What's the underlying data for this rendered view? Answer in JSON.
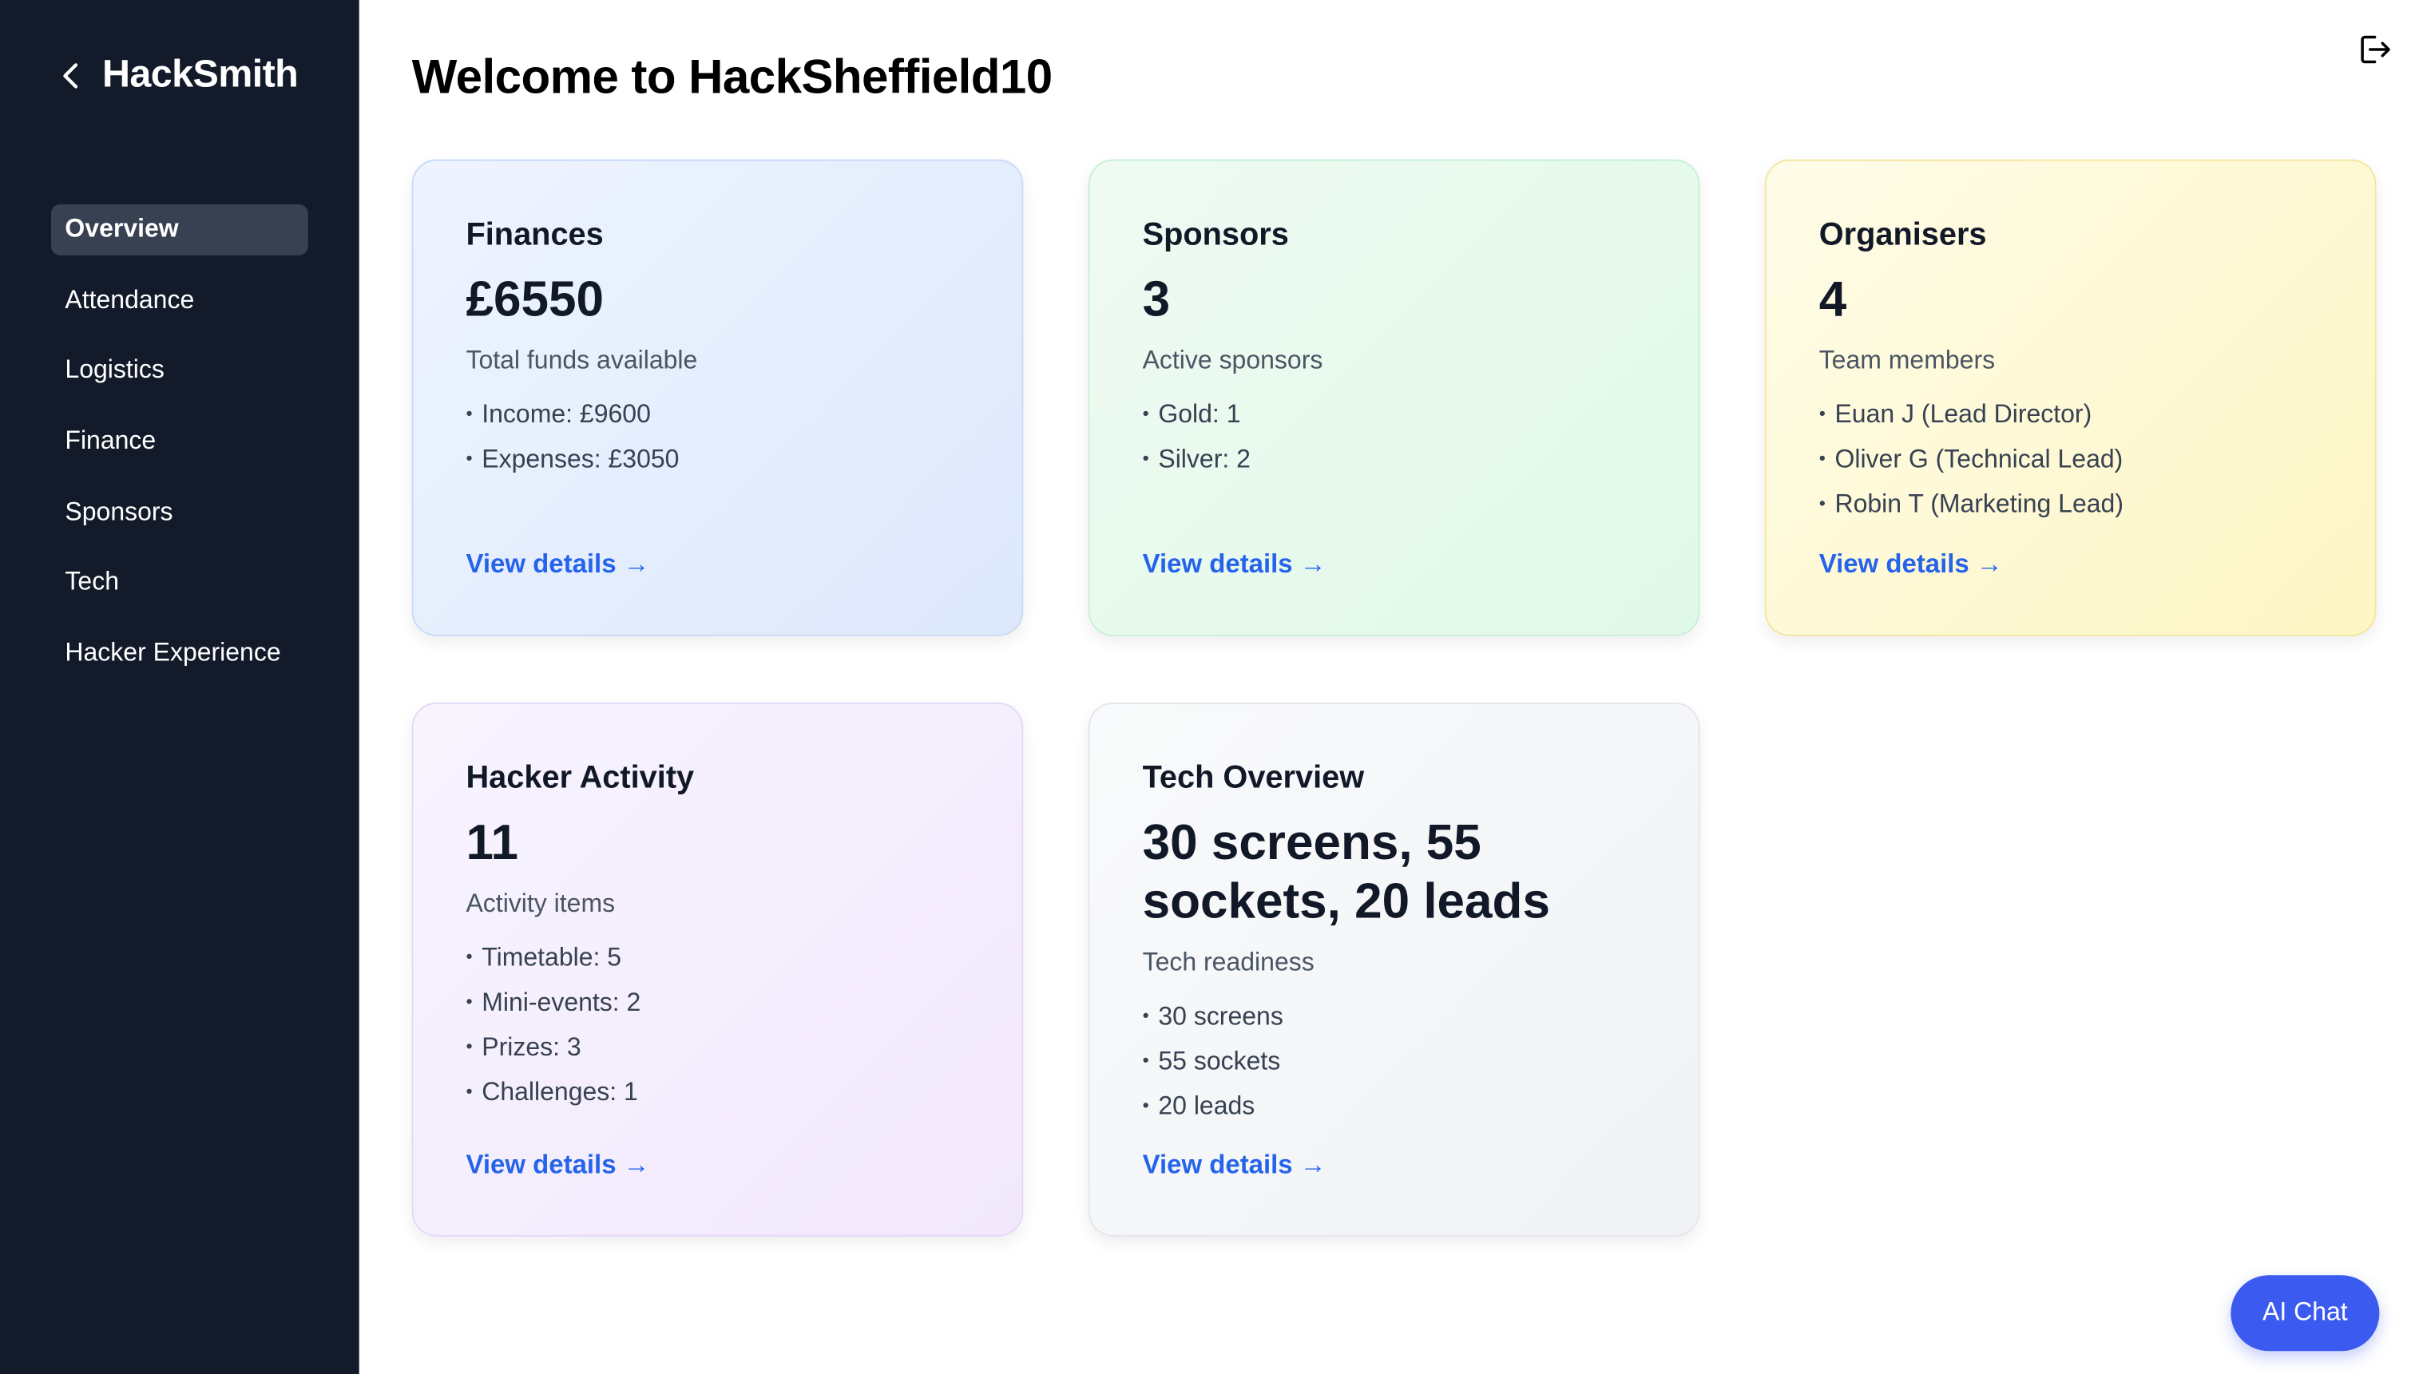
{
  "sidebar": {
    "brand": "HackSmith",
    "items": [
      {
        "label": "Overview",
        "active": true
      },
      {
        "label": "Attendance"
      },
      {
        "label": "Logistics"
      },
      {
        "label": "Finance"
      },
      {
        "label": "Sponsors"
      },
      {
        "label": "Tech"
      },
      {
        "label": "Hacker Experience"
      }
    ]
  },
  "header": {
    "title": "Welcome to HackSheffield10",
    "logout_icon": "logout-icon"
  },
  "cards": [
    {
      "title": "Finances",
      "value": "£6550",
      "subtitle": "Total funds available",
      "items": [
        "Income: £9600",
        "Expenses: £3050"
      ],
      "link": "View details →",
      "color": "#eef4ff"
    },
    {
      "title": "Sponsors",
      "value": "3",
      "subtitle": "Active sponsors",
      "items": [
        "Gold: 1",
        "Silver: 2"
      ],
      "link": "View details →",
      "color": "#effbf3"
    },
    {
      "title": "Organisers",
      "value": "4",
      "subtitle": "Team members",
      "items": [
        "Euan J (Lead Director)",
        "Oliver G (Technical Lead)",
        "Robin T (Marketing Lead)"
      ],
      "link": "View details →",
      "color": "#fefce8"
    },
    {
      "title": "Hacker Activity",
      "value": "11",
      "subtitle": "Activity items",
      "items": [
        "Timetable: 5",
        "Mini-events: 2",
        "Prizes: 3",
        "Challenges: 1"
      ],
      "link": "View details →",
      "color": "#f8f4fe"
    },
    {
      "title": "Tech Overview",
      "value": "30 screens, 55 sockets, 20 leads",
      "subtitle": "Tech readiness",
      "items": [
        "30 screens",
        "55 sockets",
        "20 leads"
      ],
      "link": "View details →",
      "color": "#f9fafb"
    }
  ],
  "chat": {
    "label": "AI Chat",
    "color": "#3b5bf0"
  },
  "colors": {
    "sidebar": "#131a2a",
    "link": "#2563eb"
  }
}
